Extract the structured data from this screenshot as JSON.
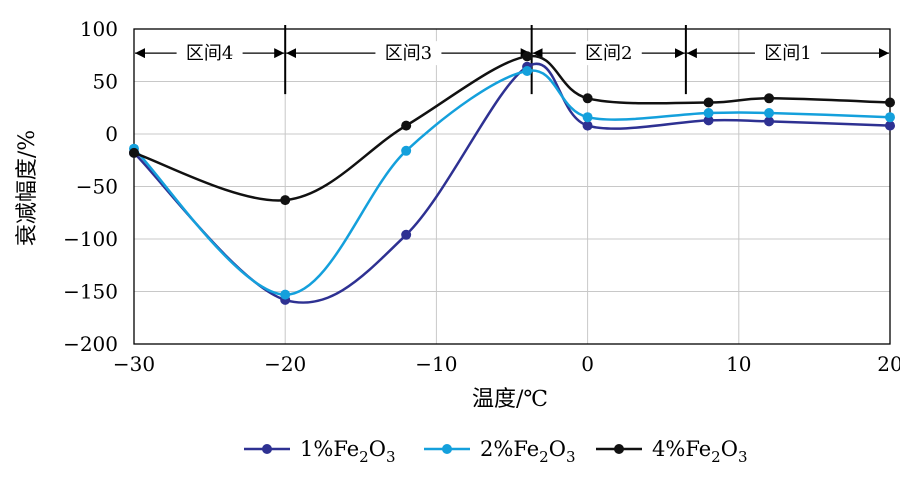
{
  "chart_data": {
    "type": "line",
    "xlabel": "温度/℃",
    "ylabel": "衰减幅度/%",
    "xlim": [
      -30,
      20
    ],
    "ylim": [
      -200,
      100
    ],
    "x_ticks": [
      -30,
      -20,
      -10,
      0,
      10,
      20
    ],
    "x_tick_labels": [
      "−30",
      "−20",
      "−10",
      "0",
      "10",
      "20"
    ],
    "y_ticks": [
      -200,
      -150,
      -100,
      -50,
      0,
      50,
      100
    ],
    "y_tick_labels": [
      "−200",
      "−150",
      "−100",
      "−50",
      "0",
      "50",
      "100"
    ],
    "grid": true,
    "legend_position": "bottom",
    "series": [
      {
        "name": "1%Fe2O3",
        "label_main": "1%Fe",
        "label_sub1": "2",
        "label_mid": "O",
        "label_sub2": "3",
        "color": "#2e3192",
        "x": [
          -30,
          -20,
          -12,
          -4,
          0,
          8,
          12,
          20
        ],
        "y": [
          -18,
          -158,
          -96,
          64,
          8,
          13,
          12,
          8
        ]
      },
      {
        "name": "2%Fe2O3",
        "label_main": "2%Fe",
        "label_sub1": "2",
        "label_mid": "O",
        "label_sub2": "3",
        "color": "#14a0dc",
        "x": [
          -30,
          -20,
          -12,
          -4,
          0,
          8,
          12,
          20
        ],
        "y": [
          -14,
          -153,
          -16,
          60,
          16,
          20,
          20,
          16
        ]
      },
      {
        "name": "4%Fe2O3",
        "label_main": "4%Fe",
        "label_sub1": "2",
        "label_mid": "O",
        "label_sub2": "3",
        "color": "#111111",
        "x": [
          -30,
          -20,
          -12,
          -4,
          0,
          8,
          12,
          20
        ],
        "y": [
          -18,
          -63,
          8,
          74,
          34,
          30,
          34,
          30
        ]
      }
    ],
    "zones": [
      {
        "label": "区间4",
        "from": -30,
        "to": -20
      },
      {
        "label": "区间3",
        "from": -20,
        "to": -3.7
      },
      {
        "label": "区间2",
        "from": -3.7,
        "to": 6.5
      },
      {
        "label": "区间1",
        "from": 6.5,
        "to": 20
      }
    ],
    "zone_arrow_y": 77,
    "zone_dividers": [
      {
        "x": -20,
        "y_top": 100,
        "y_bottom": 38
      },
      {
        "x": -3.7,
        "y_top": 100,
        "y_bottom": 38
      },
      {
        "x": 6.5,
        "y_top": 100,
        "y_bottom": 38
      }
    ]
  }
}
